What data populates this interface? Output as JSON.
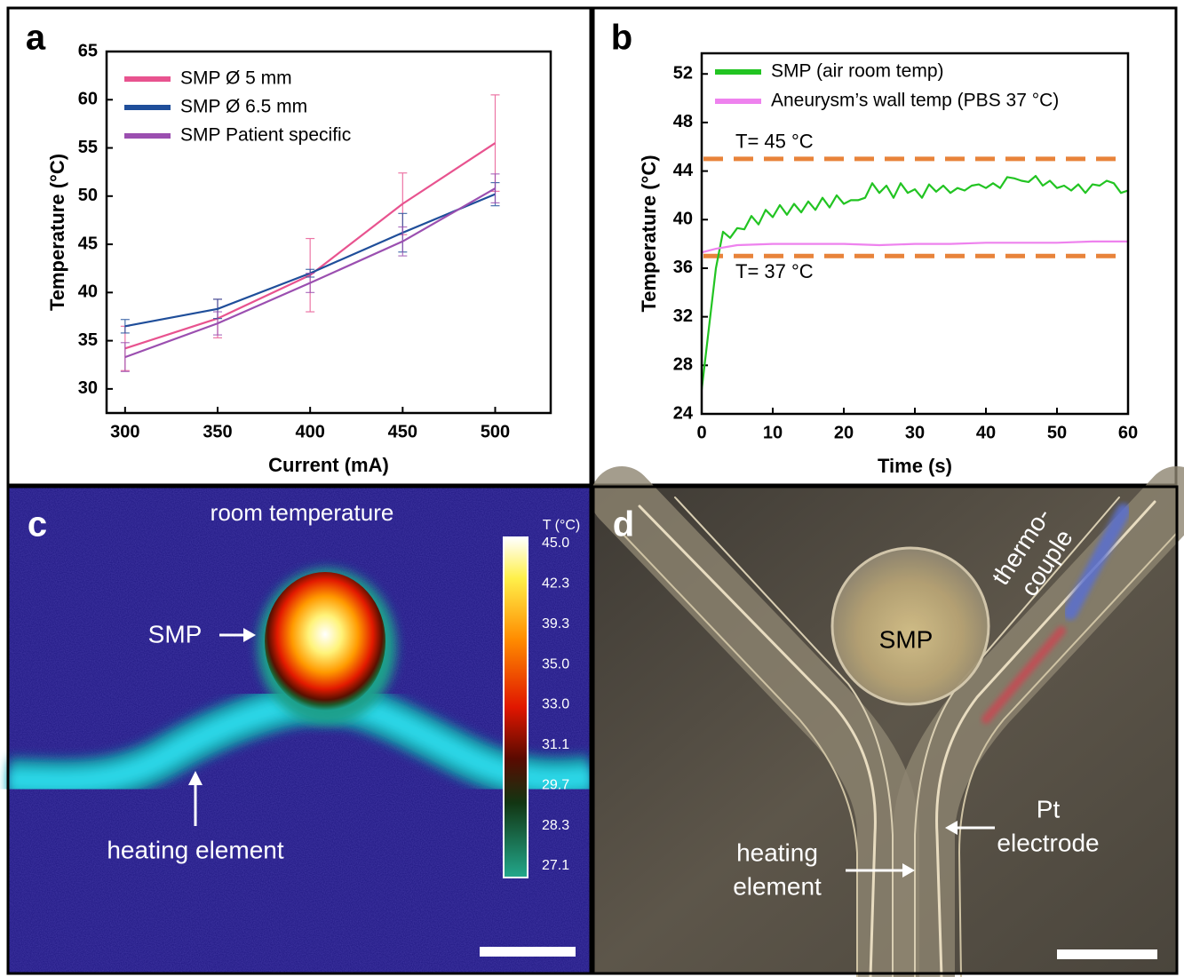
{
  "chart_data": [
    {
      "type": "line",
      "panel": "a",
      "x_label": "Current (mA)",
      "y_label": "Temperature (°C)",
      "x": [
        300,
        350,
        400,
        450,
        500
      ],
      "xlim": [
        290,
        530
      ],
      "xticks": [
        300,
        350,
        400,
        450,
        500
      ],
      "ylim": [
        27.5,
        65
      ],
      "yticks": [
        30,
        35,
        40,
        45,
        50,
        55,
        60,
        65
      ],
      "legend": "upper left",
      "series": [
        {
          "name": "SMP Ø 5 mm",
          "color": "#e8538f",
          "values": [
            34.2,
            37.3,
            41.8,
            49.2,
            55.5
          ],
          "errors": [
            2.3,
            2.0,
            3.8,
            3.2,
            5.0
          ]
        },
        {
          "name": "SMP Ø 6.5 mm",
          "color": "#1f4e9a",
          "values": [
            36.5,
            38.3,
            42.0,
            46.2,
            50.2
          ],
          "errors": [
            0.7,
            1.0,
            0.4,
            2.0,
            1.2
          ]
        },
        {
          "name": "SMP Patient specific",
          "color": "#9b4fb0",
          "values": [
            33.3,
            36.8,
            41.0,
            45.3,
            50.8
          ],
          "errors": [
            1.5,
            1.2,
            1.0,
            1.5,
            1.5
          ]
        }
      ]
    },
    {
      "type": "line",
      "panel": "b",
      "x_label": "Time (s)",
      "y_label": "Temperature (°C)",
      "xlim": [
        0,
        60
      ],
      "xticks": [
        0,
        10,
        20,
        30,
        40,
        50,
        60
      ],
      "ylim": [
        24,
        53.7
      ],
      "yticks": [
        24,
        28,
        32,
        36,
        40,
        44,
        48,
        52
      ],
      "legend": "upper left",
      "hline_color": "#e8833a",
      "hlines": [
        {
          "value": 45,
          "label": "T= 45 °C"
        },
        {
          "value": 37,
          "label": "T= 37 °C"
        }
      ],
      "series": [
        {
          "name": "SMP (air room temp)",
          "color": "#22c422",
          "x": [
            0,
            1,
            2,
            3,
            4,
            5,
            6,
            7,
            8,
            9,
            10,
            11,
            12,
            13,
            14,
            15,
            16,
            17,
            18,
            19,
            20,
            21,
            22,
            23,
            24,
            25,
            26,
            27,
            28,
            29,
            30,
            31,
            32,
            33,
            34,
            35,
            36,
            37,
            38,
            39,
            40,
            41,
            42,
            43,
            44,
            45,
            46,
            47,
            48,
            49,
            50,
            51,
            52,
            53,
            54,
            55,
            56,
            57,
            58,
            59,
            60
          ],
          "values": [
            26,
            31,
            36,
            39,
            38.5,
            39.3,
            39.2,
            40.3,
            39.6,
            40.8,
            40.2,
            41.2,
            40.4,
            41.3,
            40.6,
            41.5,
            40.8,
            41.8,
            41,
            42,
            41.3,
            41.6,
            41.6,
            41.8,
            43,
            42.2,
            42.8,
            41.8,
            43,
            42.2,
            42.5,
            41.8,
            42.9,
            42.3,
            42.8,
            42.2,
            42.6,
            42.4,
            42.8,
            42.9,
            42.6,
            43,
            42.6,
            43.5,
            43.4,
            43.2,
            43.1,
            43.6,
            42.8,
            43.2,
            42.6,
            42.8,
            42.4,
            42.9,
            42.2,
            42.9,
            42.8,
            43.2,
            43,
            42.2,
            42.4
          ]
        },
        {
          "name": "Aneurysm’s wall temp (PBS 37 °C)",
          "color": "#ee82ee",
          "x": [
            0,
            2,
            5,
            10,
            15,
            20,
            25,
            30,
            35,
            40,
            45,
            50,
            55,
            60
          ],
          "values": [
            37.3,
            37.6,
            37.9,
            38,
            38,
            38,
            37.9,
            38,
            38,
            38.1,
            38.1,
            38.1,
            38.2,
            38.2
          ]
        }
      ]
    }
  ],
  "panel_c": {
    "panel": "c",
    "top_label": "room temperature",
    "smp_label": "SMP",
    "heating_label": "heating element",
    "colorbar": {
      "title": "T (°C)",
      "labels": [
        "45.0",
        "42.3",
        "39.3",
        "35.0",
        "33.0",
        "31.1",
        "29.7",
        "28.3",
        "27.1"
      ]
    }
  },
  "panel_d": {
    "panel": "d",
    "thermocouple_label": [
      "thermo-",
      "couple"
    ],
    "smp_label": "SMP",
    "electrode_label": [
      "Pt",
      "electrode"
    ],
    "heating_label": [
      "heating",
      "element"
    ]
  }
}
